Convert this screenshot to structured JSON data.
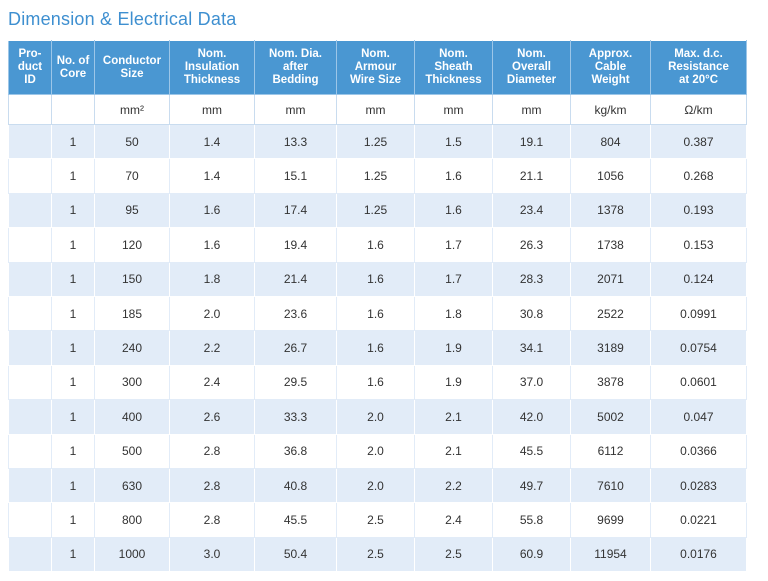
{
  "title": "Dimension & Electrical Data",
  "headers": [
    "Pro-\nduct\nID",
    "No. of\nCore",
    "Conductor\nSize",
    "Nom.\nInsulation\nThickness",
    "Nom. Dia.\nafter\nBedding",
    "Nom.\nArmour\nWire Size",
    "Nom.\nSheath\nThickness",
    "Nom.\nOverall\nDiameter",
    "Approx.\nCable\nWeight",
    "Max. d.c.\nResistance\nat 20°C"
  ],
  "units": [
    "",
    "",
    "mm²",
    "mm",
    "mm",
    "mm",
    "mm",
    "mm",
    "kg/km",
    "Ω/km"
  ],
  "rows": [
    [
      "",
      "1",
      "50",
      "1.4",
      "13.3",
      "1.25",
      "1.5",
      "19.1",
      "804",
      "0.387"
    ],
    [
      "",
      "1",
      "70",
      "1.4",
      "15.1",
      "1.25",
      "1.6",
      "21.1",
      "1056",
      "0.268"
    ],
    [
      "",
      "1",
      "95",
      "1.6",
      "17.4",
      "1.25",
      "1.6",
      "23.4",
      "1378",
      "0.193"
    ],
    [
      "",
      "1",
      "120",
      "1.6",
      "19.4",
      "1.6",
      "1.7",
      "26.3",
      "1738",
      "0.153"
    ],
    [
      "",
      "1",
      "150",
      "1.8",
      "21.4",
      "1.6",
      "1.7",
      "28.3",
      "2071",
      "0.124"
    ],
    [
      "",
      "1",
      "185",
      "2.0",
      "23.6",
      "1.6",
      "1.8",
      "30.8",
      "2522",
      "0.0991"
    ],
    [
      "",
      "1",
      "240",
      "2.2",
      "26.7",
      "1.6",
      "1.9",
      "34.1",
      "3189",
      "0.0754"
    ],
    [
      "",
      "1",
      "300",
      "2.4",
      "29.5",
      "1.6",
      "1.9",
      "37.0",
      "3878",
      "0.0601"
    ],
    [
      "",
      "1",
      "400",
      "2.6",
      "33.3",
      "2.0",
      "2.1",
      "42.0",
      "5002",
      "0.047"
    ],
    [
      "",
      "1",
      "500",
      "2.8",
      "36.8",
      "2.0",
      "2.1",
      "45.5",
      "6112",
      "0.0366"
    ],
    [
      "",
      "1",
      "630",
      "2.8",
      "40.8",
      "2.0",
      "2.2",
      "49.7",
      "7610",
      "0.0283"
    ],
    [
      "",
      "1",
      "800",
      "2.8",
      "45.5",
      "2.5",
      "2.4",
      "55.8",
      "9699",
      "0.0221"
    ],
    [
      "",
      "1",
      "1000",
      "3.0",
      "50.4",
      "2.5",
      "2.5",
      "60.9",
      "11954",
      "0.0176"
    ]
  ]
}
